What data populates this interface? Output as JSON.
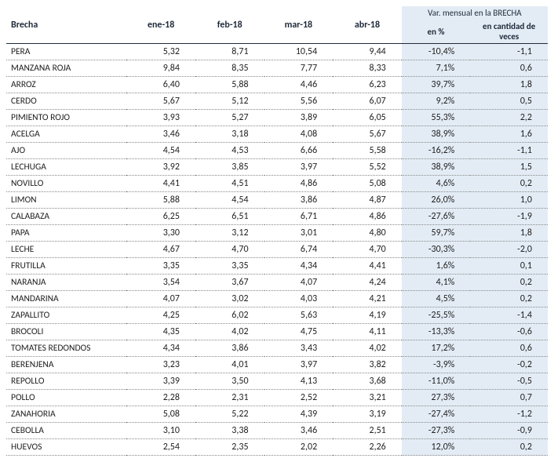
{
  "table": {
    "header": {
      "brecha": "Brecha",
      "months": [
        "ene-18",
        "feb-18",
        "mar-18",
        "abr-18"
      ],
      "var_group": "Var. mensual en la BRECHA",
      "var_pct": "en %",
      "var_qty": "en cantidad de veces"
    },
    "rows": [
      {
        "name": "PERA",
        "m": [
          "5,32",
          "8,71",
          "10,54",
          "9,44"
        ],
        "pct": "-10,4%",
        "qty": "-1,1"
      },
      {
        "name": "MANZANA ROJA",
        "m": [
          "9,84",
          "8,35",
          "7,77",
          "8,33"
        ],
        "pct": "7,1%",
        "qty": "0,6"
      },
      {
        "name": "ARROZ",
        "m": [
          "6,40",
          "5,88",
          "4,46",
          "6,23"
        ],
        "pct": "39,7%",
        "qty": "1,8"
      },
      {
        "name": "CERDO",
        "m": [
          "5,67",
          "5,12",
          "5,56",
          "6,07"
        ],
        "pct": "9,2%",
        "qty": "0,5"
      },
      {
        "name": "PIMIENTO ROJO",
        "m": [
          "3,93",
          "5,27",
          "3,89",
          "6,05"
        ],
        "pct": "55,3%",
        "qty": "2,2"
      },
      {
        "name": "ACELGA",
        "m": [
          "3,46",
          "3,18",
          "4,08",
          "5,67"
        ],
        "pct": "38,9%",
        "qty": "1,6"
      },
      {
        "name": "AJO",
        "m": [
          "4,54",
          "4,53",
          "6,66",
          "5,58"
        ],
        "pct": "-16,2%",
        "qty": "-1,1"
      },
      {
        "name": "LECHUGA",
        "m": [
          "3,92",
          "3,85",
          "3,97",
          "5,52"
        ],
        "pct": "38,9%",
        "qty": "1,5"
      },
      {
        "name": "NOVILLO",
        "m": [
          "4,41",
          "4,51",
          "4,86",
          "5,08"
        ],
        "pct": "4,6%",
        "qty": "0,2"
      },
      {
        "name": "LIMON",
        "m": [
          "5,88",
          "4,54",
          "3,86",
          "4,87"
        ],
        "pct": "26,0%",
        "qty": "1,0"
      },
      {
        "name": "CALABAZA",
        "m": [
          "6,25",
          "6,51",
          "6,71",
          "4,86"
        ],
        "pct": "-27,6%",
        "qty": "-1,9"
      },
      {
        "name": "PAPA",
        "m": [
          "3,30",
          "3,12",
          "3,01",
          "4,80"
        ],
        "pct": "59,7%",
        "qty": "1,8"
      },
      {
        "name": "LECHE",
        "m": [
          "4,67",
          "4,70",
          "6,74",
          "4,70"
        ],
        "pct": "-30,3%",
        "qty": "-2,0"
      },
      {
        "name": "FRUTILLA",
        "m": [
          "3,35",
          "3,35",
          "4,34",
          "4,41"
        ],
        "pct": "1,6%",
        "qty": "0,1"
      },
      {
        "name": "NARANJA",
        "m": [
          "3,54",
          "3,67",
          "4,07",
          "4,24"
        ],
        "pct": "4,1%",
        "qty": "0,2"
      },
      {
        "name": "MANDARINA",
        "m": [
          "4,07",
          "3,02",
          "4,03",
          "4,21"
        ],
        "pct": "4,5%",
        "qty": "0,2"
      },
      {
        "name": "ZAPALLITO",
        "m": [
          "4,25",
          "6,02",
          "5,63",
          "4,19"
        ],
        "pct": "-25,5%",
        "qty": "-1,4"
      },
      {
        "name": "BROCOLI",
        "m": [
          "4,35",
          "4,02",
          "4,75",
          "4,11"
        ],
        "pct": "-13,3%",
        "qty": "-0,6"
      },
      {
        "name": "TOMATES REDONDOS",
        "m": [
          "4,34",
          "3,86",
          "3,43",
          "4,02"
        ],
        "pct": "17,2%",
        "qty": "0,6"
      },
      {
        "name": "BERENJENA",
        "m": [
          "3,23",
          "4,01",
          "3,97",
          "3,82"
        ],
        "pct": "-3,9%",
        "qty": "-0,2"
      },
      {
        "name": "REPOLLO",
        "m": [
          "3,39",
          "3,50",
          "4,13",
          "3,68"
        ],
        "pct": "-11,0%",
        "qty": "-0,5"
      },
      {
        "name": "POLLO",
        "m": [
          "2,28",
          "2,31",
          "2,52",
          "3,21"
        ],
        "pct": "27,3%",
        "qty": "0,7"
      },
      {
        "name": "ZANAHORIA",
        "m": [
          "5,08",
          "5,22",
          "4,39",
          "3,19"
        ],
        "pct": "-27,4%",
        "qty": "-1,2"
      },
      {
        "name": "CEBOLLA",
        "m": [
          "3,10",
          "3,38",
          "3,46",
          "2,51"
        ],
        "pct": "-27,3%",
        "qty": "-0,9"
      },
      {
        "name": "HUEVOS",
        "m": [
          "2,54",
          "2,35",
          "2,02",
          "2,26"
        ],
        "pct": "12,0%",
        "qty": "0,2"
      }
    ]
  },
  "colors": {
    "header_text": "#1f2a3a",
    "var_bg": "#e3ecf5",
    "dotted": "#888888",
    "text": "#222222",
    "background": "#ffffff"
  }
}
